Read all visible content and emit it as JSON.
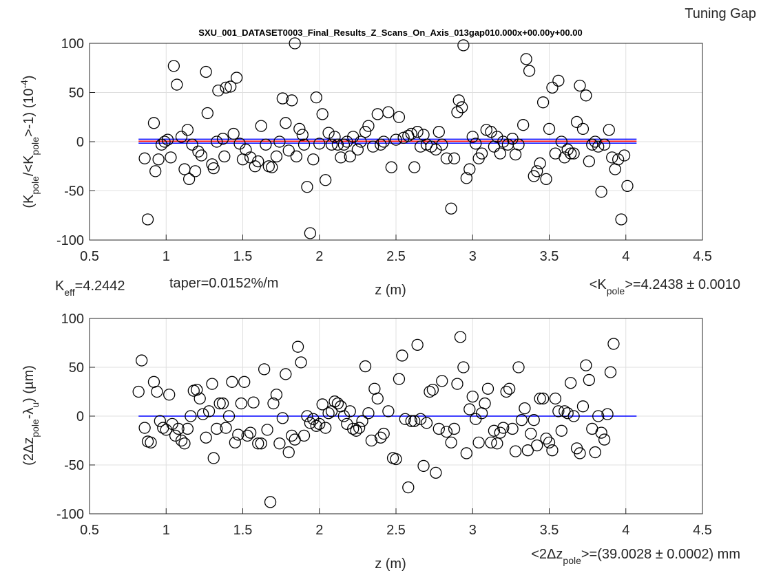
{
  "figure_title": "Tuning Gap",
  "chart_data": [
    {
      "type": "scatter",
      "title": "SXU_001_DATASET0003_Final_Results_Z_Scans_On_Axis_013gap010.000x+00.00y+00.00",
      "ylabel": [
        "(K",
        "pole",
        "/<K",
        "pole",
        ">-1) (10",
        "-4",
        ")"
      ],
      "xlabel": "z (m)",
      "annotations": [
        [
          "K",
          "eff",
          "=4.2442"
        ],
        [
          "taper=0.0152%/m"
        ],
        [
          "<K",
          "pole",
          ">=4.2438 ± 0.0010"
        ]
      ],
      "color": "#000000",
      "x": [
        0.86,
        0.88,
        0.92,
        0.93,
        0.95,
        0.97,
        0.99,
        1.01,
        1.03,
        1.05,
        1.07,
        1.1,
        1.12,
        1.14,
        1.15,
        1.17,
        1.19,
        1.21,
        1.23,
        1.26,
        1.27,
        1.3,
        1.31,
        1.33,
        1.34,
        1.37,
        1.38,
        1.39,
        1.42,
        1.44,
        1.46,
        1.48,
        1.5,
        1.52,
        1.55,
        1.58,
        1.6,
        1.62,
        1.65,
        1.67,
        1.69,
        1.72,
        1.74,
        1.76,
        1.78,
        1.8,
        1.82,
        1.84,
        1.85,
        1.87,
        1.89,
        1.9,
        1.92,
        1.94,
        1.96,
        1.98,
        2.0,
        2.02,
        2.04,
        2.06,
        2.08,
        2.1,
        2.12,
        2.14,
        2.16,
        2.18,
        2.2,
        2.22,
        2.25,
        2.27,
        2.3,
        2.32,
        2.35,
        2.38,
        2.4,
        2.42,
        2.45,
        2.47,
        2.5,
        2.52,
        2.55,
        2.58,
        2.6,
        2.62,
        2.64,
        2.66,
        2.68,
        2.7,
        2.73,
        2.76,
        2.78,
        2.8,
        2.83,
        2.86,
        2.88,
        2.9,
        2.91,
        2.93,
        2.94,
        2.96,
        2.98,
        3.0,
        3.02,
        3.04,
        3.06,
        3.09,
        3.12,
        3.14,
        3.16,
        3.18,
        3.2,
        3.23,
        3.26,
        3.28,
        3.3,
        3.33,
        3.35,
        3.37,
        3.4,
        3.42,
        3.44,
        3.46,
        3.48,
        3.5,
        3.52,
        3.54,
        3.56,
        3.58,
        3.6,
        3.62,
        3.64,
        3.66,
        3.68,
        3.7,
        3.72,
        3.74,
        3.76,
        3.78,
        3.8,
        3.82,
        3.84,
        3.86,
        3.89,
        3.91,
        3.93,
        3.95,
        3.97,
        3.99,
        4.01
      ],
      "values": [
        -17,
        -79,
        19,
        -30,
        -18,
        -3,
        0,
        2,
        -16,
        77,
        58,
        5,
        -28,
        12,
        -38,
        -3,
        -30,
        -10,
        -14,
        71,
        29,
        -23,
        -27,
        0,
        52,
        3,
        -15,
        55,
        56,
        8,
        65,
        -2,
        -18,
        -8,
        -16,
        -25,
        -20,
        16,
        -3,
        -25,
        -26,
        -15,
        0,
        44,
        19,
        -9,
        42,
        100,
        -15,
        13,
        7,
        -3,
        -46,
        -93,
        -18,
        45,
        -2,
        28,
        -39,
        9,
        -3,
        5,
        -3,
        -16,
        -3,
        0,
        -15,
        5,
        -8,
        0,
        10,
        16,
        -5,
        28,
        -3,
        0,
        30,
        -26,
        2,
        25,
        4,
        6,
        8,
        -26,
        10,
        -5,
        7,
        -3,
        -5,
        -8,
        10,
        -3,
        -17,
        -68,
        -17,
        30,
        42,
        35,
        98,
        -37,
        -28,
        5,
        -2,
        -17,
        -12,
        12,
        10,
        -5,
        5,
        -12,
        0,
        -3,
        3,
        -13,
        -3,
        17,
        84,
        72,
        -35,
        -30,
        -22,
        40,
        -38,
        13,
        55,
        -12,
        62,
        0,
        -16,
        -8,
        -12,
        -12,
        20,
        57,
        13,
        47,
        -20,
        -3,
        0,
        -5,
        -51,
        -3,
        12,
        -16,
        -28,
        -18,
        -79,
        -14,
        -45
      ],
      "lines": [
        {
          "color": "#0000ff",
          "x": [
            0.82,
            4.07
          ],
          "values": [
            2.5,
            2.5
          ]
        },
        {
          "color": "#0000ff",
          "x": [
            0.82,
            4.07
          ],
          "values": [
            -1.5,
            -1.5
          ]
        },
        {
          "color": "#ff0000",
          "x": [
            0.82,
            4.07
          ],
          "values": [
            0.5,
            0.5
          ]
        }
      ],
      "xlim": [
        0.5,
        4.5
      ],
      "ylim": [
        -100,
        100
      ],
      "xticks": [
        0.5,
        1,
        1.5,
        2,
        2.5,
        3,
        3.5,
        4,
        4.5
      ],
      "yticks": [
        -100,
        -50,
        0,
        50,
        100
      ],
      "grid": true
    },
    {
      "type": "scatter",
      "ylabel": [
        "(2Δz",
        "pole",
        "-λ",
        "u",
        ") (µm)"
      ],
      "xlabel": "z (m)",
      "annotations": [
        [
          "<2Δz",
          "pole",
          ">=(39.0028 ± 0.0002) mm"
        ]
      ],
      "color": "#000000",
      "x": [
        0.82,
        0.84,
        0.86,
        0.88,
        0.9,
        0.92,
        0.94,
        0.96,
        0.98,
        1.0,
        1.02,
        1.04,
        1.06,
        1.08,
        1.1,
        1.12,
        1.14,
        1.16,
        1.18,
        1.2,
        1.22,
        1.24,
        1.26,
        1.28,
        1.3,
        1.31,
        1.33,
        1.35,
        1.37,
        1.39,
        1.41,
        1.43,
        1.45,
        1.47,
        1.49,
        1.51,
        1.53,
        1.55,
        1.57,
        1.6,
        1.62,
        1.64,
        1.66,
        1.68,
        1.7,
        1.72,
        1.74,
        1.76,
        1.78,
        1.8,
        1.82,
        1.84,
        1.86,
        1.88,
        1.9,
        1.92,
        1.94,
        1.96,
        1.98,
        2.0,
        2.02,
        2.04,
        2.06,
        2.08,
        2.1,
        2.12,
        2.14,
        2.16,
        2.18,
        2.2,
        2.22,
        2.24,
        2.26,
        2.28,
        2.3,
        2.32,
        2.34,
        2.36,
        2.38,
        2.4,
        2.42,
        2.45,
        2.48,
        2.5,
        2.52,
        2.54,
        2.56,
        2.58,
        2.6,
        2.62,
        2.64,
        2.66,
        2.68,
        2.7,
        2.72,
        2.74,
        2.76,
        2.78,
        2.8,
        2.83,
        2.86,
        2.88,
        2.9,
        2.92,
        2.94,
        2.96,
        2.98,
        3.0,
        3.02,
        3.04,
        3.06,
        3.08,
        3.1,
        3.12,
        3.14,
        3.16,
        3.18,
        3.2,
        3.22,
        3.24,
        3.26,
        3.28,
        3.3,
        3.32,
        3.34,
        3.36,
        3.38,
        3.4,
        3.42,
        3.44,
        3.46,
        3.48,
        3.5,
        3.52,
        3.54,
        3.56,
        3.58,
        3.6,
        3.62,
        3.64,
        3.66,
        3.68,
        3.7,
        3.72,
        3.74,
        3.76,
        3.78,
        3.8,
        3.82,
        3.84,
        3.86,
        3.88,
        3.9,
        3.92
      ],
      "values": [
        25,
        57,
        -12,
        -26,
        -27,
        35,
        25,
        -5,
        -12,
        -14,
        22,
        -8,
        -20,
        -13,
        -25,
        -28,
        -13,
        0,
        26,
        27,
        18,
        2,
        -22,
        5,
        33,
        -43,
        -13,
        13,
        13,
        -12,
        0,
        35,
        -27,
        -19,
        13,
        35,
        -20,
        -17,
        14,
        -28,
        -28,
        48,
        -14,
        -88,
        13,
        22,
        -28,
        -2,
        43,
        -37,
        -20,
        -24,
        71,
        55,
        -20,
        0,
        -7,
        -3,
        -10,
        -8,
        12,
        -12,
        3,
        5,
        15,
        13,
        10,
        0,
        -8,
        5,
        -13,
        -15,
        -12,
        -5,
        51,
        3,
        -25,
        28,
        18,
        -22,
        -18,
        5,
        -43,
        -44,
        38,
        62,
        -3,
        -73,
        -5,
        -5,
        73,
        -3,
        -51,
        -7,
        25,
        27,
        -58,
        -13,
        36,
        -16,
        -27,
        -13,
        33,
        81,
        50,
        -38,
        7,
        20,
        -3,
        -27,
        3,
        13,
        28,
        -27,
        -15,
        -28,
        -17,
        -12,
        25,
        28,
        -13,
        -36,
        50,
        -4,
        8,
        -35,
        -18,
        -4,
        -30,
        18,
        18,
        -23,
        -27,
        -35,
        18,
        5,
        -15,
        5,
        3,
        34,
        0,
        -33,
        -38,
        10,
        52,
        37,
        -13,
        -37,
        0,
        -17,
        -24,
        2,
        45,
        74
      ],
      "lines": [
        {
          "color": "#0000ff",
          "x": [
            0.82,
            4.07
          ],
          "values": [
            0,
            0
          ]
        }
      ],
      "xlim": [
        0.5,
        4.5
      ],
      "ylim": [
        -100,
        100
      ],
      "xticks": [
        0.5,
        1,
        1.5,
        2,
        2.5,
        3,
        3.5,
        4,
        4.5
      ],
      "yticks": [
        -100,
        -50,
        0,
        50,
        100
      ],
      "grid": true
    }
  ]
}
